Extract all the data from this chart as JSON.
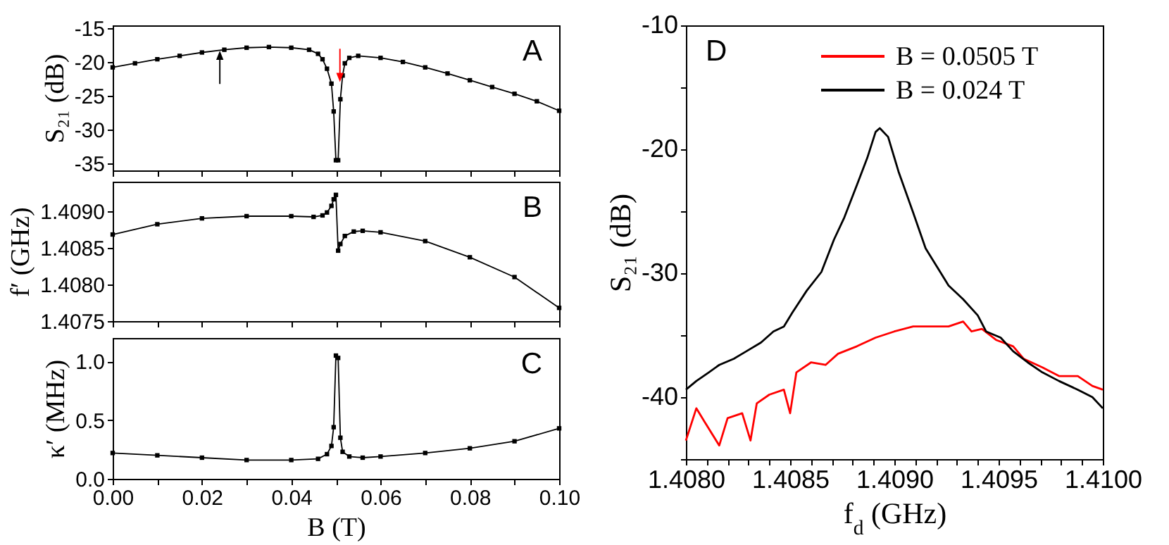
{
  "chart_data": [
    {
      "type": "line",
      "ylabel": "S₂₁ (dB)",
      "marker": "square",
      "color": "#000000",
      "xlim": [
        0,
        0.1
      ],
      "ylim": [
        -36,
        -14.6
      ],
      "tick_labels": "y",
      "annotations": [
        "A"
      ],
      "xticks": [
        {
          "value": 0,
          "label": null
        },
        {
          "value": 0.01,
          "label": null
        },
        {
          "value": 0.02,
          "label": null
        },
        {
          "value": 0.03,
          "label": null
        },
        {
          "value": 0.04,
          "label": null
        },
        {
          "value": 0.05,
          "label": null
        },
        {
          "value": 0.06,
          "label": null
        },
        {
          "value": 0.07,
          "label": null
        },
        {
          "value": 0.08,
          "label": null
        },
        {
          "value": 0.09,
          "label": null
        },
        {
          "value": 0.1,
          "label": null
        }
      ],
      "yticks": [
        -35,
        -30,
        -25,
        -20,
        -15
      ],
      "x": [
        0,
        0.005,
        0.01,
        0.015,
        0.02,
        0.025,
        0.03,
        0.035,
        0.04,
        0.044,
        0.046,
        0.047,
        0.048,
        0.049,
        0.0495,
        0.05,
        0.0505,
        0.051,
        0.0515,
        0.052,
        0.053,
        0.055,
        0.06,
        0.065,
        0.07,
        0.075,
        0.08,
        0.085,
        0.09,
        0.095,
        0.1
      ],
      "values": [
        -20.8,
        -20.2,
        -19.6,
        -19.1,
        -18.6,
        -18.2,
        -17.9,
        -17.8,
        -17.9,
        -18.2,
        -18.8,
        -19.6,
        -21,
        -23.2,
        -27.3,
        -34.5,
        -34.5,
        -25.5,
        -22,
        -20.2,
        -19.4,
        -19.1,
        -19.4,
        -20,
        -20.8,
        -21.7,
        -22.7,
        -23.7,
        -24.7,
        -25.8,
        -27.2
      ]
    },
    {
      "type": "line",
      "ylabel": "f′ (GHz)",
      "marker": "square",
      "color": "#000000",
      "xlim": [
        0,
        0.1
      ],
      "ylim": [
        1.4075,
        1.4094
      ],
      "tick_labels": "y",
      "annotations": [
        "B"
      ],
      "xticks": [
        {
          "value": 0,
          "label": null
        },
        {
          "value": 0.01,
          "label": null
        },
        {
          "value": 0.02,
          "label": null
        },
        {
          "value": 0.03,
          "label": null
        },
        {
          "value": 0.04,
          "label": null
        },
        {
          "value": 0.05,
          "label": null
        },
        {
          "value": 0.06,
          "label": null
        },
        {
          "value": 0.07,
          "label": null
        },
        {
          "value": 0.08,
          "label": null
        },
        {
          "value": 0.09,
          "label": null
        },
        {
          "value": 0.1,
          "label": null
        }
      ],
      "yticks": [
        {
          "value": 1.4075,
          "label": "1.4075"
        },
        {
          "value": 1.408,
          "label": "1.4080"
        },
        {
          "value": 1.4085,
          "label": "1.4085"
        },
        {
          "value": 1.409,
          "label": "1.4090"
        }
      ],
      "x": [
        0,
        0.01,
        0.02,
        0.03,
        0.04,
        0.045,
        0.047,
        0.048,
        0.049,
        0.0495,
        0.05,
        0.0505,
        0.051,
        0.052,
        0.054,
        0.056,
        0.06,
        0.07,
        0.08,
        0.09,
        0.1
      ],
      "values": [
        1.40868,
        1.40882,
        1.4089,
        1.40893,
        1.40893,
        1.40892,
        1.40894,
        1.40898,
        1.40907,
        1.40916,
        1.40922,
        1.40846,
        1.40855,
        1.40866,
        1.40872,
        1.40873,
        1.40871,
        1.40859,
        1.40837,
        1.4081,
        1.40768
      ]
    },
    {
      "type": "line",
      "xlabel": "B (T)",
      "ylabel": "κ′ (MHz)",
      "marker": "square",
      "color": "#000000",
      "xlim": [
        0,
        0.1
      ],
      "ylim": [
        0,
        1.2
      ],
      "annotations": [
        "C"
      ],
      "xticks": [
        {
          "value": 0,
          "label": "0.00"
        },
        {
          "value": 0.01,
          "label": null
        },
        {
          "value": 0.02,
          "label": "0.02"
        },
        {
          "value": 0.03,
          "label": null
        },
        {
          "value": 0.04,
          "label": "0.04"
        },
        {
          "value": 0.05,
          "label": null
        },
        {
          "value": 0.06,
          "label": "0.06"
        },
        {
          "value": 0.07,
          "label": null
        },
        {
          "value": 0.08,
          "label": "0.08"
        },
        {
          "value": 0.09,
          "label": null
        },
        {
          "value": 0.1,
          "label": "0.10"
        }
      ],
      "yticks": [
        {
          "value": 0,
          "label": "0.0"
        },
        0.5,
        {
          "value": 1,
          "label": "1.0"
        }
      ],
      "x": [
        0,
        0.01,
        0.02,
        0.03,
        0.04,
        0.046,
        0.048,
        0.049,
        0.0495,
        0.05,
        0.0505,
        0.051,
        0.0515,
        0.053,
        0.056,
        0.06,
        0.07,
        0.08,
        0.09,
        0.1
      ],
      "values": [
        0.22,
        0.2,
        0.18,
        0.16,
        0.16,
        0.17,
        0.21,
        0.28,
        0.44,
        1.05,
        1.03,
        0.35,
        0.23,
        0.19,
        0.18,
        0.19,
        0.22,
        0.26,
        0.32,
        0.43
      ]
    },
    {
      "type": "line",
      "xlabel": "f$_{d}$ (GHz)",
      "ylabel": "S₂₁ (dB)",
      "legend": "top right",
      "xlim": [
        1.408,
        1.41
      ],
      "ylim": [
        -45,
        -10
      ],
      "annotations": [
        "D"
      ],
      "xticks": [
        {
          "value": 1.408,
          "label": "1.4080"
        },
        {
          "value": 1.4081,
          "label": null
        },
        {
          "value": 1.4082,
          "label": null
        },
        {
          "value": 1.4083,
          "label": null
        },
        {
          "value": 1.4084,
          "label": null
        },
        {
          "value": 1.4085,
          "label": "1.4085"
        },
        {
          "value": 1.4086,
          "label": null
        },
        {
          "value": 1.4087,
          "label": null
        },
        {
          "value": 1.4088,
          "label": null
        },
        {
          "value": 1.4089,
          "label": null
        },
        {
          "value": 1.409,
          "label": "1.4090"
        },
        {
          "value": 1.4091,
          "label": null
        },
        {
          "value": 1.4092,
          "label": null
        },
        {
          "value": 1.4093,
          "label": null
        },
        {
          "value": 1.4094,
          "label": null
        },
        {
          "value": 1.4095,
          "label": "1.4095"
        },
        {
          "value": 1.4096,
          "label": null
        },
        {
          "value": 1.4097,
          "label": null
        },
        {
          "value": 1.4098,
          "label": null
        },
        {
          "value": 1.4099,
          "label": null
        },
        {
          "value": 1.41,
          "label": "1.4100"
        }
      ],
      "yticks": [
        -10,
        {
          "value": -15,
          "label": null
        },
        -20,
        {
          "value": -25,
          "label": null
        },
        -30,
        {
          "value": -35,
          "label": null
        },
        -40,
        {
          "value": -45,
          "label": null
        }
      ],
      "series": [
        {
          "name": "B = 0.0505 T",
          "color": "#ff0000",
          "x": [
            1.408,
            1.40805,
            1.40809,
            1.40816,
            1.4082,
            1.40827,
            1.40831,
            1.40834,
            1.4084,
            1.40847,
            1.4085,
            1.40853,
            1.4086,
            1.40867,
            1.40873,
            1.40882,
            1.40891,
            1.409,
            1.40909,
            1.40918,
            1.40926,
            1.40933,
            1.40937,
            1.40942,
            1.40949,
            1.40957,
            1.40962,
            1.40971,
            1.40979,
            1.40988,
            1.40995,
            1.41
          ],
          "values": [
            -43.5,
            -40.9,
            -42,
            -43.9,
            -41.7,
            -41.3,
            -43.5,
            -40.5,
            -39.8,
            -39.4,
            -41.3,
            -38,
            -37.2,
            -37.4,
            -36.5,
            -35.9,
            -35.2,
            -34.7,
            -34.3,
            -34.3,
            -34.3,
            -33.9,
            -34.7,
            -34.5,
            -35.4,
            -35.9,
            -36.9,
            -37.6,
            -38.3,
            -38.3,
            -39.1,
            -39.4
          ]
        },
        {
          "name": "B = 0.024 T",
          "color": "#000000",
          "x": [
            1.408,
            1.40805,
            1.40811,
            1.40816,
            1.40823,
            1.40829,
            1.40836,
            1.40842,
            1.40847,
            1.40851,
            1.40858,
            1.40865,
            1.40871,
            1.40876,
            1.40882,
            1.40887,
            1.40891,
            1.40893,
            1.40897,
            1.40902,
            1.40909,
            1.40915,
            1.40922,
            1.40926,
            1.40933,
            1.4094,
            1.40944,
            1.40951,
            1.40957,
            1.40964,
            1.40971,
            1.40979,
            1.40988,
            1.40995,
            1.41
          ],
          "values": [
            -39.4,
            -38.7,
            -38,
            -37.4,
            -36.9,
            -36.3,
            -35.6,
            -34.7,
            -34.3,
            -33.2,
            -31.4,
            -29.9,
            -27.3,
            -25.5,
            -22.9,
            -20.7,
            -18.6,
            -18.3,
            -19,
            -21.8,
            -25.1,
            -28,
            -29.9,
            -31,
            -32.1,
            -33.4,
            -34.7,
            -35.2,
            -36.3,
            -37.2,
            -38,
            -38.7,
            -39.4,
            -40,
            -40.9
          ]
        }
      ]
    }
  ]
}
